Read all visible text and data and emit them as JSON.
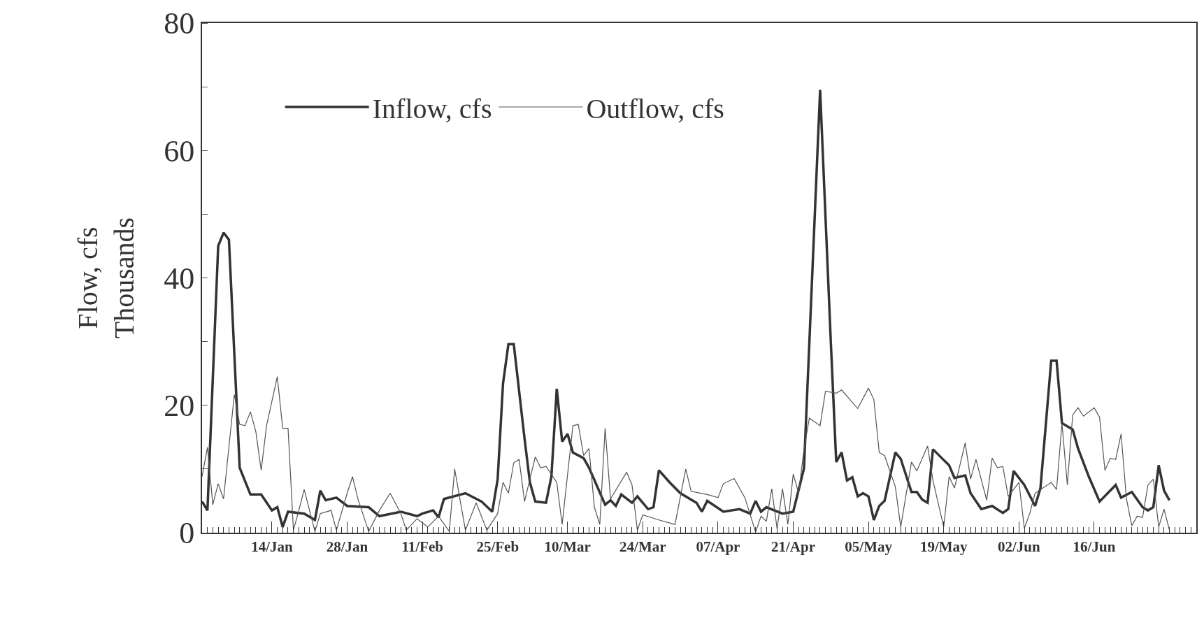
{
  "chart_data": {
    "type": "line",
    "ylabel": "Flow, cfs\nThousands",
    "xlim": [
      "--01-01",
      "--07-05"
    ],
    "xticks": [
      {
        "value": "--01-14",
        "label": "14/Jan"
      },
      {
        "value": "--01-28",
        "label": "28/Jan"
      },
      {
        "value": "--02-11",
        "label": "11/Feb"
      },
      {
        "value": "--02-25",
        "label": "25/Feb"
      },
      {
        "value": "--03-10",
        "label": "10/Mar"
      },
      {
        "value": "--03-24",
        "label": "24/Mar"
      },
      {
        "value": "--04-07",
        "label": "07/Apr"
      },
      {
        "value": "--04-21",
        "label": "21/Apr"
      },
      {
        "value": "--05-05",
        "label": "05/May"
      },
      {
        "value": "--05-19",
        "label": "19/May"
      },
      {
        "value": "--06-02",
        "label": "02/Jun"
      },
      {
        "value": "--06-16",
        "label": "16/Jun"
      }
    ],
    "ylim": [
      0,
      80
    ],
    "yticks": [
      0,
      20,
      40,
      60,
      80
    ],
    "legend": "top left",
    "marker": "none",
    "line_style": "solid",
    "series": [
      {
        "name": "Inflow, cfs",
        "color": "#333333",
        "x": [
          "--01-01",
          "--01-02",
          "--01-04",
          "--01-05",
          "--01-06",
          "--01-08",
          "--01-10",
          "--01-12",
          "--01-14",
          "--01-15",
          "--01-16",
          "--01-17",
          "--01-20",
          "--01-22",
          "--01-23",
          "--01-24",
          "--01-26",
          "--01-28",
          "--02-01",
          "--02-03",
          "--02-07",
          "--02-10",
          "--02-11",
          "--02-13",
          "--02-14",
          "--02-15",
          "--02-19",
          "--02-22",
          "--02-24",
          "--02-25",
          "--02-26",
          "--02-27",
          "--02-28",
          "--03-02",
          "--03-03",
          "--03-04",
          "--03-06",
          "--03-07",
          "--03-08",
          "--03-09",
          "--03-10",
          "--03-11",
          "--03-13",
          "--03-14",
          "--03-17",
          "--03-18",
          "--03-19",
          "--03-20",
          "--03-22",
          "--03-23",
          "--03-25",
          "--03-26",
          "--03-27",
          "--03-29",
          "--03-31",
          "--04-03",
          "--04-04",
          "--04-05",
          "--04-08",
          "--04-11",
          "--04-13",
          "--04-14",
          "--04-15",
          "--04-16",
          "--04-19",
          "--04-21",
          "--04-23",
          "--04-26",
          "--04-28",
          "--04-29",
          "--04-30",
          "--05-01",
          "--05-02",
          "--05-03",
          "--05-04",
          "--05-05",
          "--05-06",
          "--05-07",
          "--05-08",
          "--05-10",
          "--05-11",
          "--05-13",
          "--05-14",
          "--05-15",
          "--05-16",
          "--05-17",
          "--05-19",
          "--05-20",
          "--05-21",
          "--05-23",
          "--05-24",
          "--05-26",
          "--05-28",
          "--05-30",
          "--05-31",
          "--06-01",
          "--06-03",
          "--06-05",
          "--06-06",
          "--06-08",
          "--06-09",
          "--06-10",
          "--06-12",
          "--06-13",
          "--06-15",
          "--06-17",
          "--06-20",
          "--06-21",
          "--06-23",
          "--06-25",
          "--06-26",
          "--06-27",
          "--06-28",
          "--06-29",
          "--06-30"
        ],
        "values": [
          4.9,
          3.5,
          45,
          47.1,
          46,
          10.2,
          6,
          6,
          3.5,
          4,
          0.9,
          3.3,
          3,
          2,
          6.6,
          5.1,
          5.5,
          4.2,
          4,
          2.6,
          3.3,
          2.6,
          3,
          3.5,
          2.4,
          5.3,
          6.2,
          4.9,
          3.3,
          8.4,
          23.4,
          29.6,
          29.6,
          14.8,
          7.9,
          4.9,
          4.7,
          8.8,
          22.6,
          14.3,
          15.5,
          12.6,
          11.7,
          10.2,
          4.4,
          5.1,
          4.2,
          6,
          4.7,
          5.7,
          3.7,
          4,
          9.8,
          7.9,
          6.2,
          4.7,
          3.3,
          5,
          3.3,
          3.7,
          3,
          5,
          3.3,
          4,
          3,
          3.3,
          10.1,
          69.5,
          29.8,
          11.1,
          12.6,
          8.2,
          8.7,
          5.7,
          6.2,
          5.7,
          2,
          4.2,
          5,
          12.6,
          11.6,
          6.4,
          6.4,
          5.2,
          4.7,
          13.1,
          11.4,
          10.6,
          8.6,
          9,
          6.2,
          3.7,
          4.2,
          3.1,
          3.7,
          9.7,
          7.5,
          4.2,
          7,
          27,
          27,
          17.2,
          16.2,
          13.2,
          8.8,
          4.9,
          7.5,
          5.5,
          6.4,
          4,
          3.5,
          4,
          10.6,
          6.6,
          5.1
        ]
      },
      {
        "name": "Outflow, cfs",
        "color": "#555555",
        "x": [
          "--01-01",
          "--01-02",
          "--01-03",
          "--01-04",
          "--01-05",
          "--01-07",
          "--01-08",
          "--01-09",
          "--01-10",
          "--01-11",
          "--01-12",
          "--01-13",
          "--01-15",
          "--01-16",
          "--01-17",
          "--01-18",
          "--01-19",
          "--01-20",
          "--01-21",
          "--01-22",
          "--01-23",
          "--01-25",
          "--01-26",
          "--01-28",
          "--01-29",
          "--01-30",
          "--02-01",
          "--02-03",
          "--02-05",
          "--02-07",
          "--02-08",
          "--02-10",
          "--02-12",
          "--02-14",
          "--02-16",
          "--02-17",
          "--02-19",
          "--02-21",
          "--02-23",
          "--02-25",
          "--02-26",
          "--02-27",
          "--02-28",
          "--03-01",
          "--03-02",
          "--03-04",
          "--03-05",
          "--03-06",
          "--03-08",
          "--03-09",
          "--03-11",
          "--03-12",
          "--03-13",
          "--03-14",
          "--03-15",
          "--03-16",
          "--03-17",
          "--03-18",
          "--03-21",
          "--03-22",
          "--03-23",
          "--03-24",
          "--03-27",
          "--03-30",
          "--04-01",
          "--04-02",
          "--04-05",
          "--04-07",
          "--04-08",
          "--04-10",
          "--04-12",
          "--04-14",
          "--04-15",
          "--04-16",
          "--04-17",
          "--04-18",
          "--04-19",
          "--04-20",
          "--04-21",
          "--04-22",
          "--04-23",
          "--04-24",
          "--04-26",
          "--04-27",
          "--04-29",
          "--04-30",
          "--05-03",
          "--05-05",
          "--05-06",
          "--05-07",
          "--05-08",
          "--05-10",
          "--05-11",
          "--05-13",
          "--05-14",
          "--05-16",
          "--05-17",
          "--05-19",
          "--05-20",
          "--05-21",
          "--05-23",
          "--05-24",
          "--05-25",
          "--05-27",
          "--05-28",
          "--05-29",
          "--05-30",
          "--05-31",
          "--06-02",
          "--06-03",
          "--06-04",
          "--06-05",
          "--06-08",
          "--06-09",
          "--06-10",
          "--06-11",
          "--06-12",
          "--06-13",
          "--06-14",
          "--06-16",
          "--06-17",
          "--06-18",
          "--06-19",
          "--06-20",
          "--06-21",
          "--06-22",
          "--06-23",
          "--06-24",
          "--06-25",
          "--06-26",
          "--06-27",
          "--06-28",
          "--06-29",
          "--06-30"
        ],
        "values": [
          8.8,
          13.4,
          4.4,
          7.7,
          5.3,
          21.7,
          17,
          16.8,
          19,
          15.9,
          9.8,
          16.8,
          24.5,
          16.4,
          16.4,
          0.4,
          3.5,
          6.8,
          3.5,
          0.2,
          3,
          3.5,
          0.4,
          6.2,
          8.8,
          5.3,
          0.2,
          3.5,
          6.2,
          3,
          0.4,
          2.2,
          0.9,
          2.6,
          0.2,
          10,
          0.4,
          4.7,
          0.4,
          3,
          7.9,
          6.2,
          11,
          11.5,
          4.9,
          11.9,
          10.2,
          10.4,
          7.9,
          1.3,
          16.8,
          17,
          12.1,
          13.2,
          4,
          1.3,
          16.4,
          5.3,
          9.5,
          7.5,
          0.4,
          2.8,
          2,
          1.3,
          10,
          6.5,
          6,
          5.5,
          7.7,
          8.5,
          5.5,
          0.1,
          2.6,
          1.8,
          6.9,
          0.6,
          6.9,
          1.3,
          9.2,
          6.2,
          13.1,
          18,
          16.8,
          22.2,
          21.9,
          22.4,
          19.5,
          22.7,
          20.9,
          12.6,
          12.1,
          7.2,
          0.9,
          11.1,
          9.7,
          13.6,
          8.2,
          0.9,
          8.8,
          7,
          14.1,
          8.4,
          11.5,
          5.1,
          11.7,
          10.2,
          10.4,
          5.7,
          7.9,
          0.7,
          3,
          6.2,
          7.9,
          6.8,
          17.2,
          7.5,
          18.5,
          19.6,
          18.3,
          19.6,
          18.1,
          9.8,
          11.7,
          11.5,
          15.5,
          5.3,
          1.1,
          2.6,
          2.4,
          7.5,
          8.4,
          0.9,
          3.7,
          0.4
        ]
      }
    ]
  }
}
